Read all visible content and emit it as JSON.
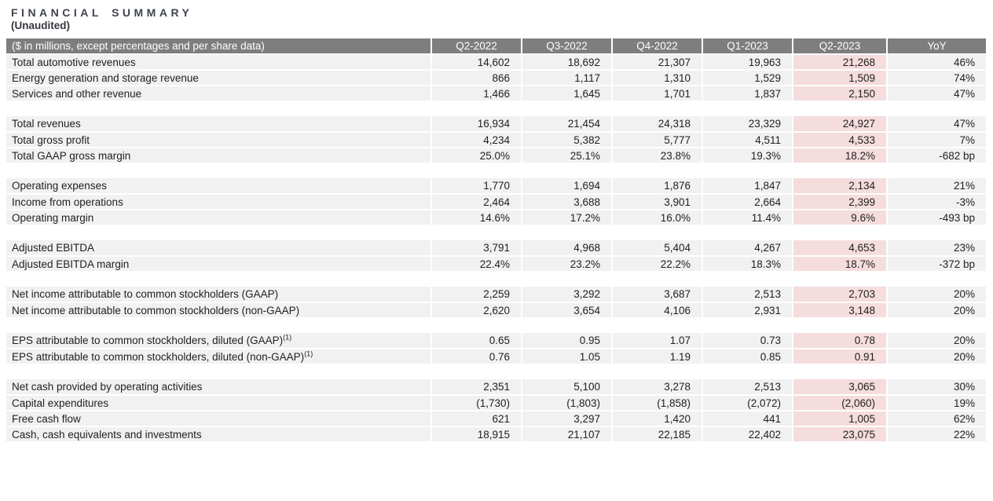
{
  "page": {
    "title": "FINANCIAL SUMMARY",
    "subtitle": "(Unaudited)"
  },
  "colors": {
    "header_bg": "#7e7e7e",
    "header_text": "#ffffff",
    "row_bg": "#f1f1f1",
    "highlight_bg": "#f5dcdd",
    "body_text": "#212121",
    "title_text": "#3f444c"
  },
  "table": {
    "header": {
      "label": "($ in millions, except percentages and per share data)",
      "columns": [
        "Q2-2022",
        "Q3-2022",
        "Q4-2022",
        "Q1-2023",
        "Q2-2023",
        "YoY"
      ],
      "highlight_column": "Q2-2023"
    },
    "sections": [
      {
        "rows": [
          {
            "label": "Total automotive revenues",
            "values": [
              "14,602",
              "18,692",
              "21,307",
              "19,963",
              "21,268",
              "46%"
            ]
          },
          {
            "label": "Energy generation and storage revenue",
            "values": [
              "866",
              "1,117",
              "1,310",
              "1,529",
              "1,509",
              "74%"
            ]
          },
          {
            "label": "Services and other revenue",
            "values": [
              "1,466",
              "1,645",
              "1,701",
              "1,837",
              "2,150",
              "47%"
            ]
          }
        ]
      },
      {
        "rows": [
          {
            "label": "Total revenues",
            "values": [
              "16,934",
              "21,454",
              "24,318",
              "23,329",
              "24,927",
              "47%"
            ]
          },
          {
            "label": "Total gross profit",
            "values": [
              "4,234",
              "5,382",
              "5,777",
              "4,511",
              "4,533",
              "7%"
            ]
          },
          {
            "label": "Total GAAP gross margin",
            "values": [
              "25.0%",
              "25.1%",
              "23.8%",
              "19.3%",
              "18.2%",
              "-682 bp"
            ]
          }
        ]
      },
      {
        "rows": [
          {
            "label": "Operating expenses",
            "values": [
              "1,770",
              "1,694",
              "1,876",
              "1,847",
              "2,134",
              "21%"
            ]
          },
          {
            "label": "Income from operations",
            "values": [
              "2,464",
              "3,688",
              "3,901",
              "2,664",
              "2,399",
              "-3%"
            ]
          },
          {
            "label": "Operating margin",
            "values": [
              "14.6%",
              "17.2%",
              "16.0%",
              "11.4%",
              "9.6%",
              "-493 bp"
            ]
          }
        ]
      },
      {
        "rows": [
          {
            "label": "Adjusted EBITDA",
            "values": [
              "3,791",
              "4,968",
              "5,404",
              "4,267",
              "4,653",
              "23%"
            ]
          },
          {
            "label": "Adjusted EBITDA margin",
            "values": [
              "22.4%",
              "23.2%",
              "22.2%",
              "18.3%",
              "18.7%",
              "-372 bp"
            ]
          }
        ]
      },
      {
        "rows": [
          {
            "label": "Net income attributable to common stockholders (GAAP)",
            "values": [
              "2,259",
              "3,292",
              "3,687",
              "2,513",
              "2,703",
              "20%"
            ]
          },
          {
            "label": "Net income attributable to common stockholders (non-GAAP)",
            "values": [
              "2,620",
              "3,654",
              "4,106",
              "2,931",
              "3,148",
              "20%"
            ]
          }
        ]
      },
      {
        "rows": [
          {
            "label": "EPS attributable to common stockholders, diluted (GAAP)",
            "superscript": "(1)",
            "values": [
              "0.65",
              "0.95",
              "1.07",
              "0.73",
              "0.78",
              "20%"
            ]
          },
          {
            "label": "EPS attributable to common stockholders, diluted (non-GAAP)",
            "superscript": "(1)",
            "values": [
              "0.76",
              "1.05",
              "1.19",
              "0.85",
              "0.91",
              "20%"
            ]
          }
        ]
      },
      {
        "rows": [
          {
            "label": "Net cash provided by operating activities",
            "values": [
              "2,351",
              "5,100",
              "3,278",
              "2,513",
              "3,065",
              "30%"
            ]
          },
          {
            "label": "Capital expenditures",
            "values": [
              "(1,730)",
              "(1,803)",
              "(1,858)",
              "(2,072)",
              "(2,060)",
              "19%"
            ]
          },
          {
            "label": "Free cash flow",
            "values": [
              "621",
              "3,297",
              "1,420",
              "441",
              "1,005",
              "62%"
            ]
          },
          {
            "label": "Cash, cash equivalents and investments",
            "values": [
              "18,915",
              "21,107",
              "22,185",
              "22,402",
              "23,075",
              "22%"
            ]
          }
        ]
      }
    ]
  }
}
